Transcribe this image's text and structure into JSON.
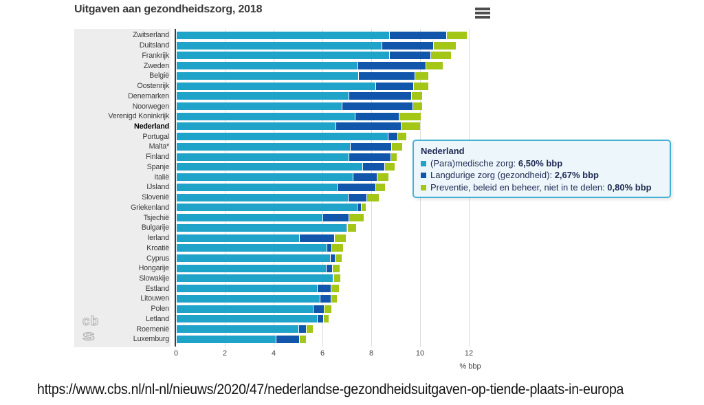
{
  "chart_data": {
    "type": "bar",
    "orientation": "horizontal",
    "stacked": true,
    "title": "Uitgaven aan gezondheidszorg, 2018",
    "xlabel": "% bbp",
    "xlim": [
      0,
      12.7
    ],
    "ticks": [
      0,
      2,
      4,
      6,
      8,
      10,
      12
    ],
    "grid": true,
    "highlighted_category": "Nederland",
    "categories": [
      "Zwitserland",
      "Duitsland",
      "Frankrijk",
      "Zweden",
      "België",
      "Oostenrijk",
      "Denemarken",
      "Noorwegen",
      "Verenigd Koninkrijk",
      "Nederland",
      "Portugal",
      "Malta*",
      "Finland",
      "Spanje",
      "Italië",
      "IJsland",
      "Slovenië",
      "Griekenland",
      "Tsjechië",
      "Bulgarije",
      "Ierland",
      "Kroatië",
      "Cyprus",
      "Hongarije",
      "Slowakije",
      "Estland",
      "Litouwen",
      "Polen",
      "Letland",
      "Roemenië",
      "Luxemburg"
    ],
    "series": [
      {
        "name": "(Para)medische zorg",
        "color": "#1fa3c9",
        "values": [
          8.7,
          8.4,
          8.7,
          7.4,
          7.45,
          8.15,
          7.05,
          6.75,
          7.3,
          6.5,
          8.65,
          7.1,
          7.05,
          7.6,
          7.2,
          6.55,
          7.0,
          7.38,
          5.97,
          6.93,
          5.0,
          6.15,
          6.28,
          6.11,
          6.4,
          5.75,
          5.85,
          5.57,
          5.76,
          4.98,
          4.06
        ]
      },
      {
        "name": "Langdurige zorg (gezondheid)",
        "color": "#1156ab",
        "values": [
          2.35,
          2.1,
          1.7,
          2.8,
          2.3,
          1.55,
          2.55,
          2.9,
          1.8,
          2.67,
          0.4,
          1.7,
          1.7,
          0.9,
          1.0,
          1.6,
          0.77,
          0.17,
          1.08,
          0.05,
          1.45,
          0.2,
          0.21,
          0.25,
          0.02,
          0.55,
          0.45,
          0.45,
          0.25,
          0.31,
          0.95
        ]
      },
      {
        "name": "Preventie, beleid en beheer, niet in te delen",
        "color": "#a3c617",
        "values": [
          0.85,
          0.95,
          0.85,
          0.7,
          0.55,
          0.6,
          0.45,
          0.4,
          0.9,
          0.8,
          0.35,
          0.45,
          0.27,
          0.42,
          0.48,
          0.38,
          0.52,
          0.2,
          0.6,
          0.38,
          0.48,
          0.47,
          0.27,
          0.33,
          0.28,
          0.36,
          0.27,
          0.32,
          0.22,
          0.28,
          0.29
        ]
      }
    ]
  },
  "tooltip": {
    "title": "Nederland",
    "items": [
      {
        "label": "(Para)medische zorg",
        "value": "6,50% bbp",
        "color": "#1fa3c9"
      },
      {
        "label": "Langdurige zorg (gezondheid)",
        "value": "2,67% bbp",
        "color": "#1156ab"
      },
      {
        "label": "Preventie, beleid en beheer, niet in te delen",
        "value": "0,80% bbp",
        "color": "#a3c617"
      }
    ]
  },
  "logo": {
    "line1": "cb",
    "line2": "s"
  },
  "footer": {
    "url": "https://www.cbs.nl/nl-nl/nieuws/2020/47/nederlandse-gezondheidsuitgaven-op-tiende-plaats-in-europa"
  },
  "style_colors": {
    "label_panel": "#ededed",
    "gridline": "#dcdcdc",
    "axis_line": "#3d3d3d",
    "tooltip_border": "#44b1d5",
    "tooltip_bg": "#ecf6fb"
  }
}
